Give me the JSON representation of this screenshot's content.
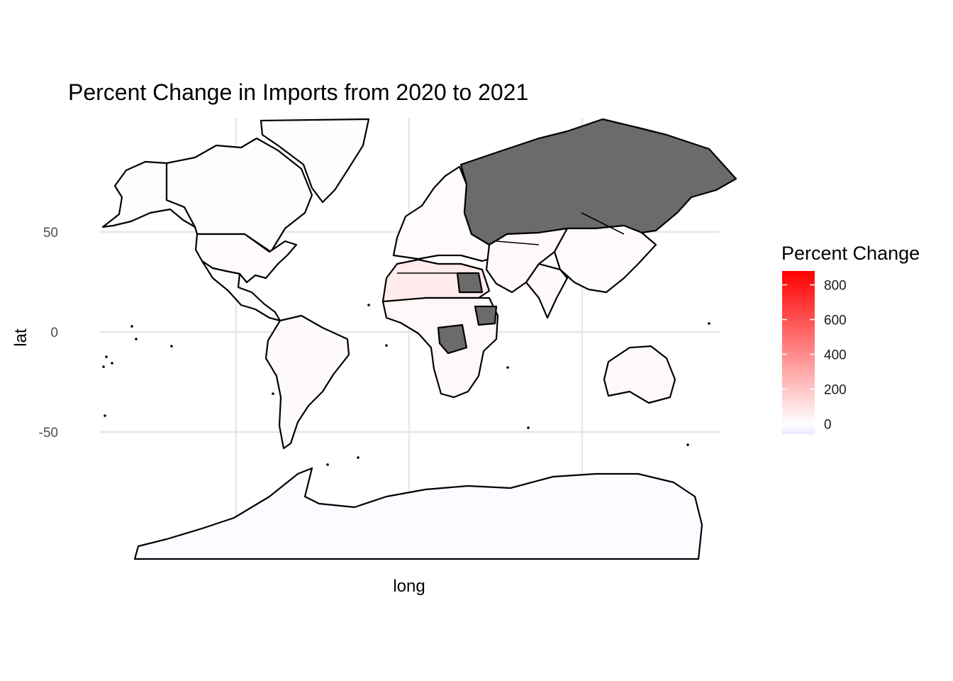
{
  "chart_data": {
    "type": "choropleth",
    "title": "Percent Change in Imports from 2020 to 2021",
    "xlabel": "long",
    "ylabel": "lat",
    "y_ticks": [
      50,
      0,
      -50
    ],
    "y_tick_labels": [
      "50",
      "0",
      "-50"
    ],
    "ylim": [
      -90,
      84
    ],
    "xlim": [
      -180,
      180
    ],
    "grid": true,
    "legend": {
      "title": "Percent Change",
      "placement": "right",
      "range": [
        -60,
        880
      ],
      "ticks": [
        800,
        600,
        400,
        200,
        0
      ],
      "tick_labels": [
        "800",
        "600",
        "400",
        "200",
        "0"
      ],
      "low_color": "#ece8ff",
      "mid_color": "#ffffff",
      "high_color": "#ff0000",
      "missing_color": "#6b6b6b"
    },
    "regions": [
      {
        "name": "Greenland",
        "value": 5
      },
      {
        "name": "Alaska",
        "value": 10
      },
      {
        "name": "Canada",
        "value": 12
      },
      {
        "name": "United States",
        "value": 15
      },
      {
        "name": "Mexico & Central America",
        "value": 12
      },
      {
        "name": "South America",
        "value": 18
      },
      {
        "name": "Libya",
        "value": 320
      },
      {
        "name": "North Africa",
        "value": 70
      },
      {
        "name": "Sub-Saharan Africa",
        "value": 25
      },
      {
        "name": "Egypt",
        "value": null
      },
      {
        "name": "Ethiopia",
        "value": null
      },
      {
        "name": "DR Congo",
        "value": null
      },
      {
        "name": "Europe",
        "value": 15
      },
      {
        "name": "Russia",
        "value": null
      },
      {
        "name": "Iran",
        "value": null
      },
      {
        "name": "Middle East & Central Asia",
        "value": 20
      },
      {
        "name": "China & East Asia",
        "value": 15
      },
      {
        "name": "India & South Asia",
        "value": 20
      },
      {
        "name": "Australia",
        "value": 25
      },
      {
        "name": "Antarctica",
        "value": -10
      }
    ]
  }
}
